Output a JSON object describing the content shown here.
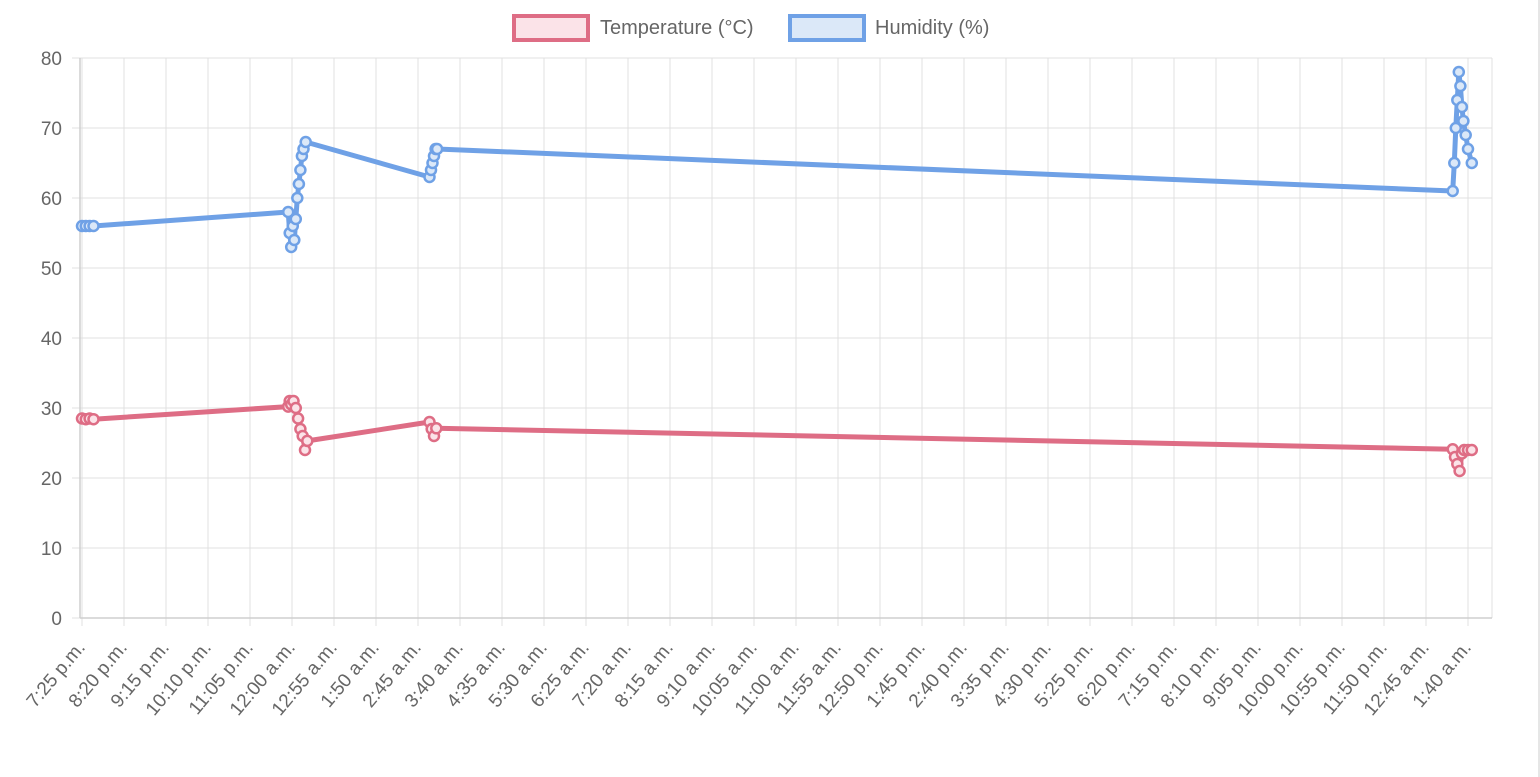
{
  "chart_data": {
    "type": "line",
    "y_axis": {
      "min": 0,
      "max": 80,
      "step": 10,
      "ticks": [
        "0",
        "10",
        "20",
        "30",
        "40",
        "50",
        "60",
        "70",
        "80"
      ]
    },
    "x_axis": {
      "tick_labels": [
        "7:25 p.m.",
        "8:20 p.m.",
        "9:15 p.m.",
        "10:10 p.m.",
        "11:05 p.m.",
        "12:00 a.m.",
        "12:55 a.m.",
        "1:50 a.m.",
        "2:45 a.m.",
        "3:40 a.m.",
        "4:35 a.m.",
        "5:30 a.m.",
        "6:25 a.m.",
        "7:20 a.m.",
        "8:15 a.m.",
        "9:10 a.m.",
        "10:05 a.m.",
        "11:00 a.m.",
        "11:55 a.m.",
        "12:50 p.m.",
        "1:45 p.m.",
        "2:40 p.m.",
        "3:35 p.m.",
        "4:30 p.m.",
        "5:25 p.m.",
        "6:20 p.m.",
        "7:15 p.m.",
        "8:10 p.m.",
        "9:05 p.m.",
        "10:00 p.m.",
        "10:55 p.m.",
        "11:50 p.m.",
        "12:45 a.m.",
        "1:40 a.m."
      ],
      "minutes_per_tick": 55,
      "tick_label_rotation_deg": -50
    },
    "grid": true,
    "legend_position": "top",
    "series": [
      {
        "name": "Temperature (°C)",
        "color": "#de6d85",
        "fill": "#fbe3e8",
        "points": [
          {
            "x": "7:25 p.m.",
            "y": 28.5
          },
          {
            "x": "7:30 p.m.",
            "y": 28.4
          },
          {
            "x": "7:35 p.m.",
            "y": 28.5
          },
          {
            "x": "7:40 p.m.",
            "y": 28.4
          },
          {
            "x": "11:55 p.m.",
            "y": 30.2
          },
          {
            "x": "11:57 p.m.",
            "y": 31.0
          },
          {
            "x": "11:59 p.m.",
            "y": 30.5
          },
          {
            "x": "12:02 a.m.",
            "y": 31.0
          },
          {
            "x": "12:05 a.m.",
            "y": 30.0
          },
          {
            "x": "12:08 a.m.",
            "y": 28.5
          },
          {
            "x": "12:11 a.m.",
            "y": 27.0
          },
          {
            "x": "12:14 a.m.",
            "y": 26.0
          },
          {
            "x": "12:17 a.m.",
            "y": 24.0
          },
          {
            "x": "12:20 a.m.",
            "y": 25.3
          },
          {
            "x": "3:00 a.m.",
            "y": 28.0
          },
          {
            "x": "3:03 a.m.",
            "y": 27.0
          },
          {
            "x": "3:06 a.m.",
            "y": 26.0
          },
          {
            "x": "3:09 a.m.",
            "y": 27.1
          },
          {
            "x": "1:20 a.m.",
            "y": 24.1
          },
          {
            "x": "1:23 a.m.",
            "y": 23.0
          },
          {
            "x": "1:26 a.m.",
            "y": 22.0
          },
          {
            "x": "1:29 a.m.",
            "y": 21.0
          },
          {
            "x": "1:32 a.m.",
            "y": 23.5
          },
          {
            "x": "1:35 a.m.",
            "y": 24.0
          },
          {
            "x": "1:40 a.m.",
            "y": 24.0
          },
          {
            "x": "1:45 a.m.",
            "y": 24.0
          }
        ]
      },
      {
        "name": "Humidity (%)",
        "color": "#6fa1e6",
        "fill": "#dbe8f8",
        "points": [
          {
            "x": "7:25 p.m.",
            "y": 56
          },
          {
            "x": "7:30 p.m.",
            "y": 56
          },
          {
            "x": "7:35 p.m.",
            "y": 56
          },
          {
            "x": "7:40 p.m.",
            "y": 56
          },
          {
            "x": "11:55 p.m.",
            "y": 58
          },
          {
            "x": "11:57 p.m.",
            "y": 55
          },
          {
            "x": "11:59 p.m.",
            "y": 53
          },
          {
            "x": "12:01 a.m.",
            "y": 56
          },
          {
            "x": "12:03 a.m.",
            "y": 54
          },
          {
            "x": "12:05 a.m.",
            "y": 57
          },
          {
            "x": "12:07 a.m.",
            "y": 60
          },
          {
            "x": "12:09 a.m.",
            "y": 62
          },
          {
            "x": "12:11 a.m.",
            "y": 64
          },
          {
            "x": "12:13 a.m.",
            "y": 66
          },
          {
            "x": "12:15 a.m.",
            "y": 67
          },
          {
            "x": "12:18 a.m.",
            "y": 68
          },
          {
            "x": "3:00 a.m.",
            "y": 63
          },
          {
            "x": "3:02 a.m.",
            "y": 64
          },
          {
            "x": "3:04 a.m.",
            "y": 65
          },
          {
            "x": "3:06 a.m.",
            "y": 66
          },
          {
            "x": "3:08 a.m.",
            "y": 67
          },
          {
            "x": "3:10 a.m.",
            "y": 67
          },
          {
            "x": "1:20 a.m.",
            "y": 61
          },
          {
            "x": "1:22 a.m.",
            "y": 65
          },
          {
            "x": "1:24 a.m.",
            "y": 70
          },
          {
            "x": "1:26 a.m.",
            "y": 74
          },
          {
            "x": "1:28 a.m.",
            "y": 78
          },
          {
            "x": "1:30 a.m.",
            "y": 76
          },
          {
            "x": "1:32 a.m.",
            "y": 73
          },
          {
            "x": "1:34 a.m.",
            "y": 71
          },
          {
            "x": "1:37 a.m.",
            "y": 69
          },
          {
            "x": "1:40 a.m.",
            "y": 67
          },
          {
            "x": "1:45 a.m.",
            "y": 65
          }
        ]
      }
    ]
  }
}
